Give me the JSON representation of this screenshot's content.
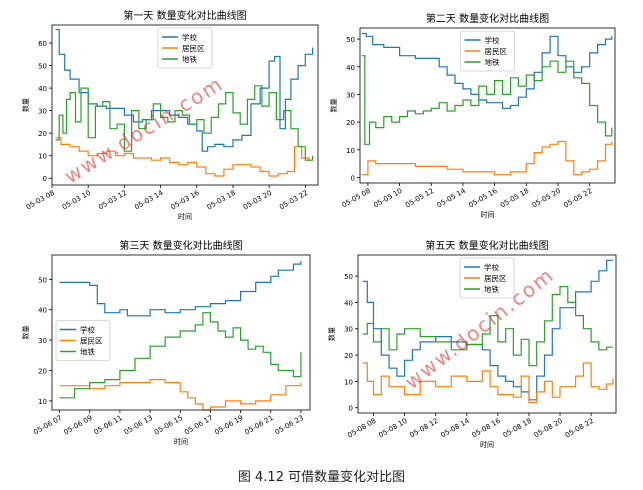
{
  "figure": {
    "caption": "图 4.12  可借数量变化对比图",
    "watermark": "www.docin.com"
  },
  "colors": {
    "school": "#1f77b4",
    "residential": "#ff7f0e",
    "subway": "#2ca02c"
  },
  "chart_data": [
    {
      "type": "line",
      "title": "第一天  数量变化对比曲线图",
      "xlabel": "时间",
      "ylabel": "数量",
      "ylim": [
        -3,
        68
      ],
      "yticks": [
        0,
        10,
        20,
        30,
        40,
        50,
        60
      ],
      "xlim": [
        8.0,
        22.7
      ],
      "xticks": [
        8,
        10,
        12,
        14,
        16,
        18,
        20,
        22
      ],
      "xtick_labels": [
        "05-03 08",
        "05-03 10",
        "05-03 12",
        "05-03 14",
        "05-03 16",
        "05-03 18",
        "05-03 20",
        "05-03 22"
      ],
      "legend": "upper-center",
      "series": [
        {
          "name": "学校",
          "x": [
            8.2,
            8.4,
            8.7,
            9.0,
            9.5,
            10.0,
            10.5,
            11.0,
            11.5,
            12.0,
            12.5,
            13.0,
            13.5,
            14.0,
            14.5,
            15.0,
            15.5,
            16.0,
            16.3,
            16.6,
            17.0,
            17.5,
            18.0,
            18.5,
            19.0,
            19.5,
            20.0,
            20.3,
            20.6,
            20.9,
            21.2,
            21.6,
            22.0,
            22.4
          ],
          "y": [
            66,
            55,
            48,
            44,
            38,
            33,
            32,
            31,
            31,
            28,
            25,
            26,
            30,
            30,
            28,
            27,
            24,
            21,
            12,
            14,
            15,
            14,
            17,
            19,
            33,
            40,
            52,
            54,
            22,
            35,
            44,
            50,
            55,
            58
          ]
        },
        {
          "name": "居民区",
          "x": [
            8.2,
            8.5,
            9.0,
            9.5,
            10.0,
            10.5,
            11.0,
            11.5,
            12.0,
            12.5,
            13.0,
            13.5,
            14.0,
            14.5,
            15.0,
            15.5,
            16.0,
            16.5,
            17.0,
            17.5,
            18.0,
            18.5,
            19.0,
            19.5,
            20.0,
            20.5,
            21.0,
            21.4,
            21.8,
            22.2,
            22.4
          ],
          "y": [
            18,
            15,
            14,
            12,
            10,
            11,
            12,
            10,
            11,
            9,
            9,
            8,
            9,
            7,
            6,
            7,
            5,
            2,
            1,
            4,
            6,
            6,
            5,
            3,
            1,
            2,
            3,
            14,
            9,
            8,
            8
          ]
        },
        {
          "name": "地铁",
          "x": [
            8.2,
            8.4,
            8.6,
            8.8,
            9.0,
            9.3,
            9.6,
            10.0,
            10.4,
            10.8,
            11.2,
            11.6,
            12.0,
            12.4,
            12.8,
            13.2,
            13.6,
            14.0,
            14.4,
            14.8,
            15.2,
            15.6,
            16.0,
            16.4,
            16.8,
            17.2,
            17.6,
            18.0,
            18.4,
            18.8,
            19.2,
            19.6,
            20.0,
            20.4,
            20.8,
            21.2,
            21.6,
            22.0,
            22.4
          ],
          "y": [
            17,
            28,
            20,
            35,
            38,
            25,
            40,
            18,
            32,
            34,
            22,
            24,
            12,
            30,
            22,
            26,
            33,
            27,
            25,
            30,
            28,
            24,
            26,
            20,
            27,
            33,
            38,
            29,
            24,
            35,
            41,
            32,
            38,
            26,
            30,
            22,
            14,
            8,
            10
          ]
        }
      ]
    },
    {
      "type": "line",
      "title": "第二天  数量变化对比曲线图",
      "xlabel": "时间",
      "ylabel": "数量",
      "ylim": [
        -2,
        54
      ],
      "yticks": [
        0,
        10,
        20,
        30,
        40,
        50
      ],
      "xlim": [
        7.5,
        23.6
      ],
      "xticks": [
        8,
        10,
        12,
        14,
        16,
        18,
        20,
        22
      ],
      "xtick_labels": [
        "05-05 08",
        "05-05 10",
        "05-05 12",
        "05-05 14",
        "05-05 16",
        "05-05 18",
        "05-05 20",
        "05-05 22"
      ],
      "legend": "upper-center",
      "series": [
        {
          "name": "学校",
          "x": [
            7.6,
            7.9,
            8.3,
            9.0,
            10.0,
            11.0,
            12.0,
            12.5,
            13.0,
            13.5,
            14.0,
            14.5,
            15.0,
            15.5,
            16.0,
            16.5,
            17.0,
            17.5,
            18.0,
            18.5,
            19.0,
            19.5,
            20.0,
            20.5,
            21.0,
            21.5,
            22.0,
            22.5,
            23.0,
            23.4
          ],
          "y": [
            52,
            51,
            48,
            47,
            44,
            43,
            43,
            40,
            37,
            34,
            32,
            30,
            28,
            27,
            27,
            25,
            26,
            29,
            32,
            38,
            45,
            51,
            44,
            40,
            38,
            40,
            45,
            48,
            50,
            51
          ]
        },
        {
          "name": "居民区",
          "x": [
            7.6,
            8.0,
            8.5,
            9.0,
            10.0,
            11.0,
            12.0,
            13.0,
            14.0,
            15.0,
            16.0,
            17.0,
            18.0,
            18.5,
            19.0,
            19.5,
            20.0,
            20.5,
            21.0,
            21.5,
            22.0,
            22.5,
            23.0,
            23.4
          ],
          "y": [
            1,
            6,
            5,
            5,
            5,
            4,
            4,
            3,
            2,
            2,
            1,
            2,
            5,
            9,
            11,
            12,
            13,
            6,
            1,
            2,
            3,
            6,
            12,
            13
          ]
        },
        {
          "name": "地铁",
          "x": [
            7.6,
            7.8,
            8.1,
            8.5,
            9.0,
            9.5,
            10.0,
            10.5,
            11.0,
            11.5,
            12.0,
            12.5,
            13.0,
            13.5,
            14.0,
            14.5,
            15.0,
            15.5,
            16.0,
            16.5,
            17.0,
            17.5,
            18.0,
            18.5,
            19.0,
            19.5,
            20.0,
            20.5,
            21.0,
            21.5,
            22.0,
            22.5,
            23.0,
            23.4
          ],
          "y": [
            44,
            12,
            20,
            18,
            22,
            20,
            22,
            24,
            23,
            24,
            25,
            27,
            24,
            26,
            28,
            26,
            33,
            30,
            35,
            30,
            36,
            33,
            37,
            35,
            40,
            42,
            38,
            42,
            36,
            34,
            26,
            20,
            15,
            18
          ]
        }
      ]
    },
    {
      "type": "line",
      "title": "第三天  数量变化对比曲线图",
      "xlabel": "时间",
      "ylabel": "数量",
      "ylim": [
        7,
        58
      ],
      "yticks": [
        10,
        20,
        30,
        40,
        50
      ],
      "xlim": [
        6.5,
        23.6
      ],
      "xticks": [
        7,
        9,
        11,
        13,
        15,
        17,
        19,
        21,
        23
      ],
      "xtick_labels": [
        "05-06 07",
        "05-06 09",
        "05-06 11",
        "05-06 13",
        "05-06 15",
        "05-06 17",
        "05-06 19",
        "05-06 21",
        "05-06 23"
      ],
      "legend": "center-left",
      "series": [
        {
          "name": "学校",
          "x": [
            7.0,
            8.0,
            9.0,
            9.5,
            10.0,
            11.0,
            11.5,
            12.0,
            13.0,
            14.0,
            15.0,
            16.0,
            17.0,
            18.0,
            19.0,
            20.0,
            21.0,
            21.5,
            22.0,
            22.5,
            23.0
          ],
          "y": [
            49,
            49,
            48,
            42,
            39,
            40,
            38,
            38,
            40,
            39,
            40,
            41,
            42,
            43,
            46,
            49,
            51,
            53,
            53,
            55,
            56
          ]
        },
        {
          "name": "居民区",
          "x": [
            7.0,
            8.0,
            9.0,
            10.0,
            11.0,
            12.0,
            13.0,
            14.0,
            15.0,
            15.5,
            16.0,
            16.5,
            17.0,
            18.0,
            19.0,
            20.0,
            21.0,
            22.0,
            23.0
          ],
          "y": [
            15,
            15,
            14,
            15,
            16,
            16,
            17,
            16,
            13,
            11,
            9,
            7,
            8,
            10,
            9,
            10,
            12,
            15,
            16
          ]
        },
        {
          "name": "地铁",
          "x": [
            7.0,
            8.0,
            9.0,
            10.0,
            11.0,
            12.0,
            13.0,
            14.0,
            15.0,
            16.0,
            16.5,
            17.0,
            17.5,
            18.0,
            18.5,
            19.0,
            19.5,
            20.0,
            20.5,
            21.0,
            21.5,
            22.0,
            22.5,
            23.0
          ],
          "y": [
            11,
            14,
            16,
            17,
            20,
            24,
            28,
            31,
            33,
            35,
            39,
            36,
            33,
            31,
            34,
            30,
            27,
            28,
            26,
            22,
            20,
            20,
            18,
            26
          ]
        }
      ]
    },
    {
      "type": "line",
      "title": "第五天  数量变化对比曲线图",
      "xlabel": "时间",
      "ylabel": "数量",
      "ylim": [
        -2,
        58
      ],
      "yticks": [
        0,
        10,
        20,
        30,
        40,
        50
      ],
      "xlim": [
        7.0,
        23.6
      ],
      "xticks": [
        8,
        10,
        12,
        14,
        16,
        18,
        20,
        22
      ],
      "xtick_labels": [
        "05-08 08",
        "05-08 10",
        "05-08 12",
        "05-08 14",
        "05-08 16",
        "05-08 18",
        "05-08 20",
        "05-08 22"
      ],
      "legend": "upper-center",
      "series": [
        {
          "name": "学校",
          "x": [
            7.3,
            7.6,
            8.0,
            8.5,
            9.0,
            9.5,
            10.0,
            10.5,
            11.0,
            12.0,
            13.0,
            14.0,
            15.0,
            15.5,
            16.0,
            16.5,
            17.0,
            17.5,
            18.0,
            18.5,
            19.0,
            19.5,
            20.0,
            21.0,
            22.0,
            22.5,
            23.0,
            23.4
          ],
          "y": [
            48,
            40,
            30,
            20,
            15,
            12,
            18,
            22,
            25,
            27,
            25,
            24,
            22,
            16,
            12,
            10,
            8,
            6,
            3,
            12,
            20,
            30,
            38,
            44,
            48,
            52,
            56,
            56
          ]
        },
        {
          "name": "居民区",
          "x": [
            7.3,
            7.6,
            8.0,
            8.5,
            9.0,
            10.0,
            11.0,
            12.0,
            13.0,
            14.0,
            15.0,
            15.5,
            16.0,
            17.0,
            17.5,
            18.0,
            18.5,
            19.0,
            19.5,
            20.0,
            21.0,
            21.5,
            22.0,
            22.5,
            23.0,
            23.4
          ],
          "y": [
            17,
            10,
            5,
            12,
            8,
            5,
            10,
            8,
            12,
            10,
            14,
            8,
            5,
            4,
            12,
            2,
            6,
            10,
            4,
            8,
            12,
            17,
            8,
            7,
            9,
            11
          ]
        },
        {
          "name": "地铁",
          "x": [
            7.3,
            7.6,
            8.0,
            8.5,
            9.0,
            9.5,
            10.0,
            11.0,
            12.0,
            13.0,
            14.0,
            15.0,
            15.5,
            16.0,
            16.5,
            17.0,
            17.5,
            18.0,
            18.5,
            19.0,
            19.5,
            20.0,
            20.5,
            21.0,
            21.5,
            22.0,
            22.5,
            23.0,
            23.4
          ],
          "y": [
            28,
            32,
            25,
            30,
            22,
            28,
            30,
            27,
            25,
            22,
            24,
            28,
            35,
            25,
            30,
            20,
            26,
            16,
            25,
            33,
            43,
            46,
            40,
            35,
            30,
            25,
            22,
            23,
            23
          ]
        }
      ]
    }
  ]
}
